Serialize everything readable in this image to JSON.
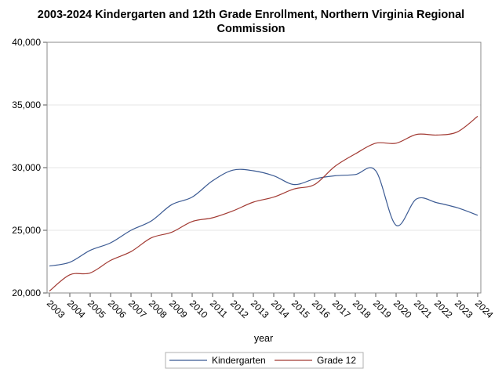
{
  "chart_data": {
    "type": "line",
    "title_line1": "2003-2024 Kindergarten and 12th Grade Enrollment, Northern Virginia Regional",
    "title_line2": "Commission",
    "xlabel": "year",
    "ylabel": "",
    "x": [
      "2003",
      "2004",
      "2005",
      "2006",
      "2007",
      "2008",
      "2009",
      "2010",
      "2011",
      "2012",
      "2013",
      "2014",
      "2015",
      "2016",
      "2017",
      "2018",
      "2019",
      "2020",
      "2021",
      "2022",
      "2023",
      "2024"
    ],
    "ylim": [
      20000,
      40000
    ],
    "yticks": [
      "20,000",
      "25,000",
      "30,000",
      "35,000",
      "40,000"
    ],
    "ytick_values": [
      20000,
      25000,
      30000,
      35000,
      40000
    ],
    "grid": true,
    "legend_position": "bottom",
    "series": [
      {
        "name": "Kindergarten",
        "color": "#3b5a93",
        "values": [
          22150,
          22450,
          23400,
          24000,
          25000,
          25750,
          27050,
          27650,
          28950,
          29800,
          29750,
          29350,
          28650,
          29100,
          29350,
          29450,
          29750,
          25400,
          27500,
          27200,
          26800,
          26200
        ]
      },
      {
        "name": "Grade 12",
        "color": "#a23a33",
        "values": [
          20150,
          21450,
          21600,
          22600,
          23300,
          24400,
          24850,
          25700,
          26000,
          26550,
          27250,
          27650,
          28300,
          28650,
          30100,
          31100,
          31950,
          31950,
          32650,
          32600,
          32850,
          34100
        ]
      }
    ]
  }
}
